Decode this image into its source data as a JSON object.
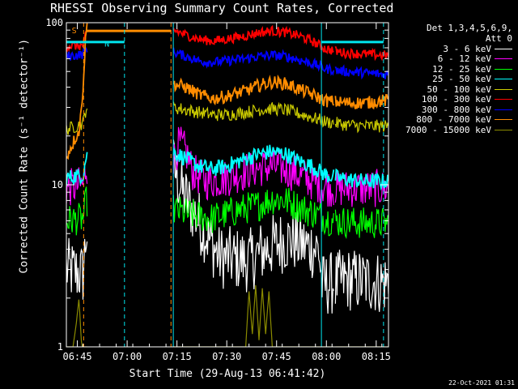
{
  "chart_data": {
    "type": "line",
    "title": "RHESSI Observing Summary Count Rates, Corrected",
    "xlabel": "Start Time (29-Aug-13 06:41:42)",
    "ylabel": "Corrected Count Rate (s⁻¹ detector⁻¹)",
    "yscale": "log",
    "ylim": [
      1,
      100
    ],
    "xlim_minutes": [
      0,
      97
    ],
    "x_ticks": [
      "06:45",
      "07:00",
      "07:15",
      "07:30",
      "07:45",
      "08:00",
      "08:15"
    ],
    "x_tick_minutes": [
      3.3,
      18.3,
      33.3,
      48.3,
      63.3,
      78.3,
      93.3
    ],
    "y_ticks": [
      "1",
      "10",
      "100"
    ],
    "detector_info": "Det 1,3,4,5,6,9,",
    "attenuator_info": "Att 0",
    "annotations": [
      {
        "text": "S",
        "color": "#ff8c00"
      },
      {
        "text": "N",
        "color": "#00e5ee"
      }
    ],
    "gaps_minutes": [
      [
        6.3,
        32.2
      ],
      [
        80.5,
        81.0
      ]
    ],
    "vertical_markers": [
      {
        "minute": 0.0,
        "color": "#00e5ee",
        "style": "solid"
      },
      {
        "minute": 5.2,
        "color": "#ff8c00",
        "style": "dashed"
      },
      {
        "minute": 17.5,
        "color": "#00e5ee",
        "style": "dashed"
      },
      {
        "minute": 31.5,
        "color": "#ff8c00",
        "style": "dashed"
      },
      {
        "minute": 32.2,
        "color": "#00e5ee",
        "style": "solid"
      },
      {
        "minute": 76.8,
        "color": "#00e5ee",
        "style": "solid"
      },
      {
        "minute": 95.5,
        "color": "#00e5ee",
        "style": "dashed"
      }
    ],
    "bars": [
      {
        "label": "S",
        "color": "#ff8c00",
        "from": 6.0,
        "to": 31.5,
        "y": 89
      },
      {
        "label": "N",
        "color": "#00e5ee",
        "from": 0.0,
        "to": 17.5,
        "y": 76
      },
      {
        "label": "N",
        "color": "#00e5ee",
        "from": 76.8,
        "to": 95.5,
        "y": 76
      }
    ],
    "series": [
      {
        "name": "3 - 6 keV",
        "color": "#ffffff",
        "points": [
          [
            0,
            3.0
          ],
          [
            5,
            2.8
          ],
          [
            6,
            5
          ],
          [
            32.2,
            13
          ],
          [
            35,
            9
          ],
          [
            38,
            7
          ],
          [
            42,
            5
          ],
          [
            46,
            3.6
          ],
          [
            50,
            3.5
          ],
          [
            55,
            3.4
          ],
          [
            60,
            4.0
          ],
          [
            64,
            4.4
          ],
          [
            68,
            4.6
          ],
          [
            72,
            4.2
          ],
          [
            76,
            4.0
          ],
          [
            77,
            2.4
          ],
          [
            85,
            2.6
          ],
          [
            95,
            2.5
          ]
        ]
      },
      {
        "name": "6 - 12 keV",
        "color": "#ff00ff",
        "points": [
          [
            0,
            9.5
          ],
          [
            5,
            10
          ],
          [
            6,
            13
          ],
          [
            32.2,
            14
          ],
          [
            34,
            18
          ],
          [
            36,
            16
          ],
          [
            38,
            12
          ],
          [
            42,
            10.5
          ],
          [
            48,
            11
          ],
          [
            56,
            12.5
          ],
          [
            62,
            13
          ],
          [
            66,
            12.5
          ],
          [
            72,
            11
          ],
          [
            76,
            10
          ],
          [
            80,
            9.5
          ],
          [
            88,
            9.5
          ],
          [
            95,
            9.5
          ]
        ]
      },
      {
        "name": "12 - 25 keV",
        "color": "#00ff00",
        "points": [
          [
            0,
            6.0
          ],
          [
            5,
            6.2
          ],
          [
            6,
            8
          ],
          [
            32.2,
            7
          ],
          [
            38,
            6.5
          ],
          [
            44,
            6.2
          ],
          [
            52,
            7.0
          ],
          [
            58,
            7.5
          ],
          [
            62,
            8.2
          ],
          [
            66,
            8.0
          ],
          [
            72,
            7.0
          ],
          [
            76,
            6.5
          ],
          [
            80,
            6.0
          ],
          [
            88,
            5.8
          ],
          [
            95,
            5.8
          ]
        ]
      },
      {
        "name": "25 - 50 keV",
        "color": "#00ffff",
        "points": [
          [
            0,
            11
          ],
          [
            5,
            11.5
          ],
          [
            6,
            15
          ],
          [
            32.2,
            16
          ],
          [
            36,
            14.5
          ],
          [
            40,
            13
          ],
          [
            44,
            12.5
          ],
          [
            48,
            13
          ],
          [
            54,
            14.5
          ],
          [
            58,
            15.5
          ],
          [
            62,
            16
          ],
          [
            66,
            15.5
          ],
          [
            70,
            14
          ],
          [
            74,
            13
          ],
          [
            78,
            11.5
          ],
          [
            84,
            10.8
          ],
          [
            90,
            10.5
          ],
          [
            95,
            10.5
          ]
        ]
      },
      {
        "name": "50 - 100 keV",
        "color": "#cccc00",
        "points": [
          [
            0,
            22
          ],
          [
            3,
            23
          ],
          [
            5,
            24
          ],
          [
            6,
            30
          ],
          [
            32.2,
            30
          ],
          [
            36,
            29
          ],
          [
            40,
            28
          ],
          [
            44,
            27
          ],
          [
            48,
            27
          ],
          [
            54,
            28
          ],
          [
            58,
            29
          ],
          [
            62,
            29.5
          ],
          [
            66,
            29
          ],
          [
            70,
            27.5
          ],
          [
            74,
            26
          ],
          [
            78,
            24.5
          ],
          [
            84,
            23.5
          ],
          [
            90,
            23
          ],
          [
            95,
            23
          ]
        ]
      },
      {
        "name": "100 - 300 keV",
        "color": "#ff0000",
        "points": [
          [
            0,
            72
          ],
          [
            3,
            72
          ],
          [
            5,
            72
          ],
          [
            6,
            85
          ],
          [
            32.2,
            90
          ],
          [
            36,
            84
          ],
          [
            40,
            79
          ],
          [
            44,
            77
          ],
          [
            48,
            79
          ],
          [
            54,
            83
          ],
          [
            58,
            87
          ],
          [
            62,
            89
          ],
          [
            66,
            87
          ],
          [
            70,
            83
          ],
          [
            74,
            77
          ],
          [
            78,
            69
          ],
          [
            84,
            65
          ],
          [
            90,
            64
          ],
          [
            95,
            63
          ]
        ]
      },
      {
        "name": "300 - 800 keV",
        "color": "#0000ff",
        "points": [
          [
            0,
            62
          ],
          [
            3,
            63
          ],
          [
            5,
            64
          ],
          [
            6,
            70
          ],
          [
            32.2,
            66
          ],
          [
            36,
            62
          ],
          [
            40,
            58
          ],
          [
            44,
            57
          ],
          [
            48,
            58
          ],
          [
            54,
            60
          ],
          [
            58,
            62
          ],
          [
            62,
            63
          ],
          [
            66,
            62
          ],
          [
            70,
            59
          ],
          [
            74,
            56
          ],
          [
            78,
            52
          ],
          [
            84,
            50
          ],
          [
            90,
            49
          ],
          [
            95,
            48
          ]
        ]
      },
      {
        "name": "800 - 7000 keV",
        "color": "#ff8c00",
        "points": [
          [
            0,
            15
          ],
          [
            4,
            22
          ],
          [
            5,
            40
          ],
          [
            6,
            95
          ],
          [
            32.2,
            42
          ],
          [
            36,
            40
          ],
          [
            40,
            36
          ],
          [
            44,
            34
          ],
          [
            48,
            35
          ],
          [
            54,
            38
          ],
          [
            58,
            41
          ],
          [
            62,
            43
          ],
          [
            66,
            42
          ],
          [
            70,
            39
          ],
          [
            74,
            36
          ],
          [
            78,
            33
          ],
          [
            84,
            32
          ],
          [
            90,
            32
          ],
          [
            95,
            33
          ]
        ]
      },
      {
        "name": "7000 - 15000 keV",
        "color": "#8b8b00",
        "points": [
          [
            0,
            1
          ],
          [
            2,
            1
          ],
          [
            3.0,
            1.4
          ],
          [
            3.8,
            2.0
          ],
          [
            4.6,
            1
          ],
          [
            5,
            1
          ],
          [
            33,
            1
          ],
          [
            54,
            1
          ],
          [
            55,
            2.2
          ],
          [
            56,
            1.2
          ],
          [
            57,
            2.4
          ],
          [
            58,
            1.1
          ],
          [
            59,
            2.3
          ],
          [
            60,
            1.2
          ],
          [
            61,
            2.2
          ],
          [
            62,
            1
          ],
          [
            95,
            1
          ]
        ]
      }
    ]
  },
  "legend": {
    "header_line1": "Det 1,3,4,5,6,9,",
    "header_line2": "Att 0"
  },
  "footer": {
    "timestamp": "22-Oct-2021 01:31"
  }
}
